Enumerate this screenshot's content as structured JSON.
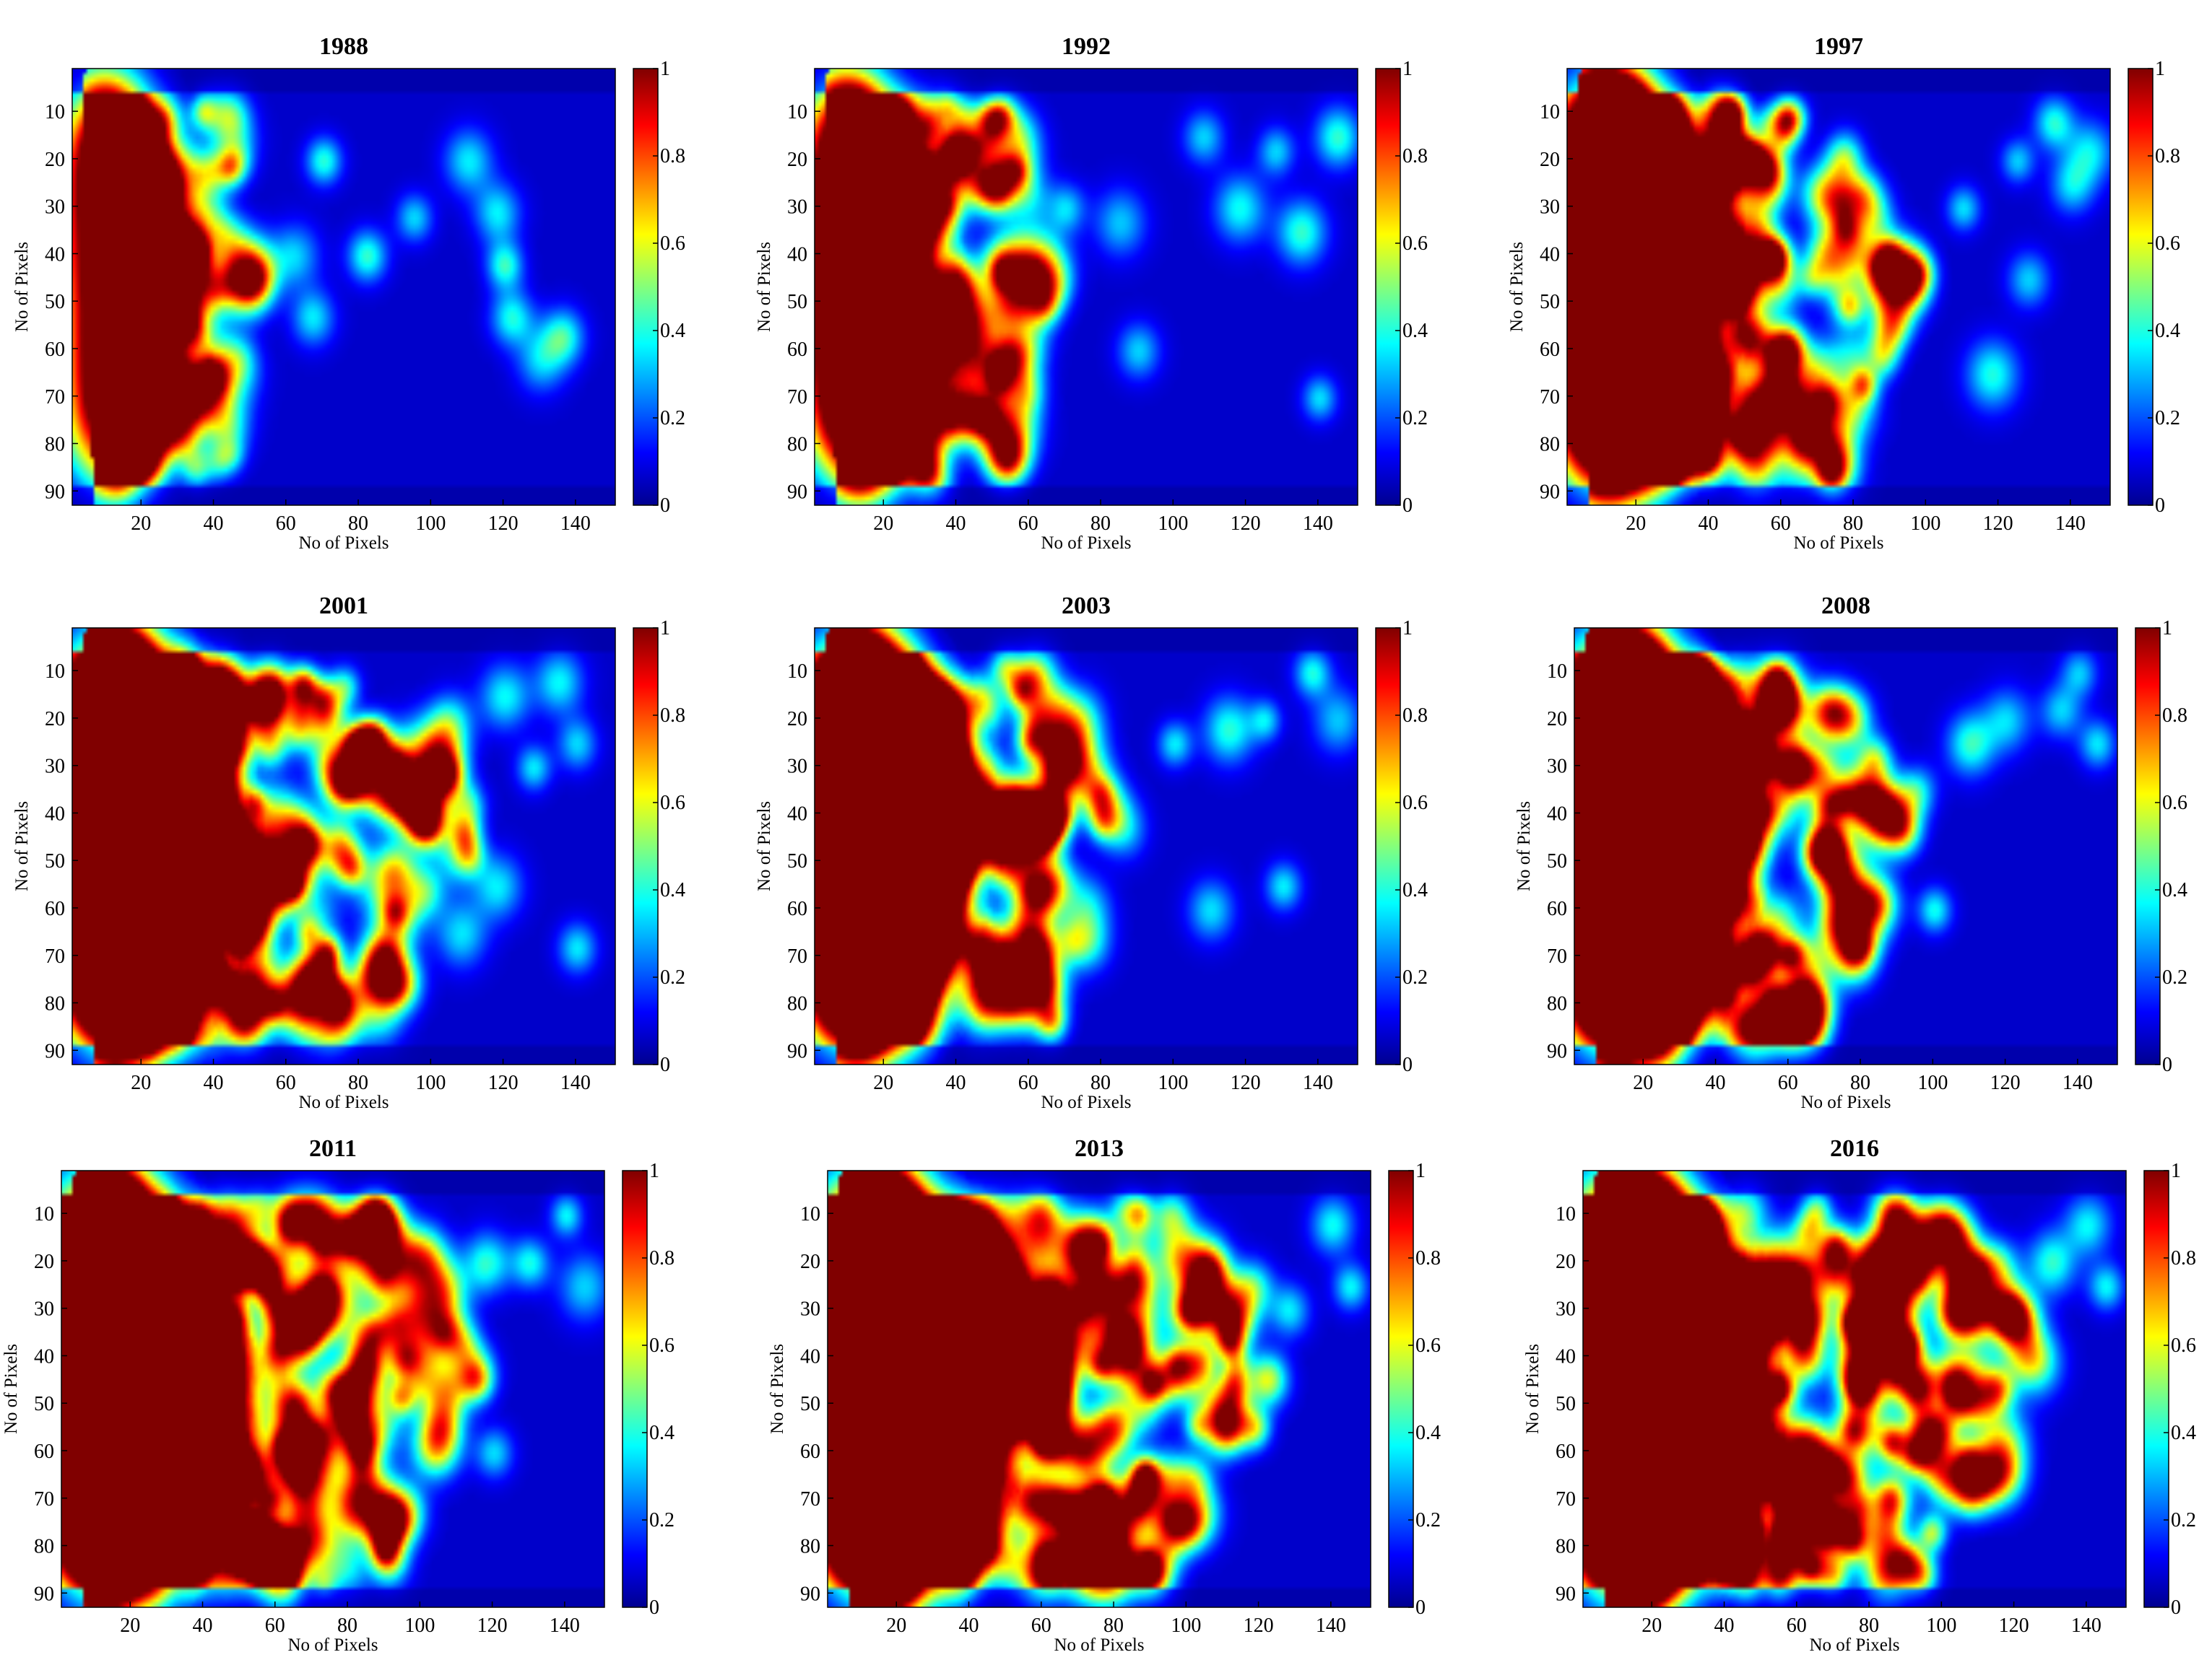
{
  "figure": {
    "colormap": "jet",
    "colormap_stops": [
      "#00008f",
      "#0000ff",
      "#00ffff",
      "#ffff00",
      "#ff0000",
      "#800000"
    ]
  },
  "chart_data": [
    {
      "type": "heatmap",
      "title": "1988",
      "xlabel": "No of Pixels",
      "ylabel": "No of Pixels",
      "xlim": [
        1,
        151
      ],
      "ylim": [
        93,
        1
      ],
      "x_ticks": [
        20,
        40,
        60,
        80,
        100,
        120,
        140
      ],
      "y_ticks": [
        10,
        20,
        30,
        40,
        50,
        60,
        70,
        80,
        90
      ],
      "colorbar": {
        "range": [
          0,
          1
        ],
        "ticks": [
          "0",
          "0.2",
          "0.4",
          "0.6",
          "0.8",
          "1"
        ]
      },
      "intensity": 0.35,
      "right_spread": 0.2,
      "peak": [
        10,
        20
      ],
      "hotspots": [
        [
          32,
          41
        ],
        [
          45,
          38
        ],
        [
          62,
          40
        ],
        [
          67,
          53
        ],
        [
          70,
          20
        ],
        [
          82,
          40
        ],
        [
          95,
          32
        ],
        [
          110,
          20
        ],
        [
          118,
          31
        ],
        [
          120,
          42
        ],
        [
          122,
          53
        ],
        [
          130,
          62
        ],
        [
          136,
          57
        ]
      ]
    },
    {
      "type": "heatmap",
      "title": "1992",
      "xlabel": "No of Pixels",
      "ylabel": "No of Pixels",
      "xlim": [
        1,
        151
      ],
      "ylim": [
        93,
        1
      ],
      "x_ticks": [
        20,
        40,
        60,
        80,
        100,
        120,
        140
      ],
      "y_ticks": [
        10,
        20,
        30,
        40,
        50,
        60,
        70,
        80,
        90
      ],
      "colorbar": {
        "range": [
          0,
          1
        ],
        "ticks": [
          "0",
          "0.2",
          "0.4",
          "0.6",
          "0.8",
          "1"
        ]
      },
      "intensity": 0.45,
      "right_spread": 0.35,
      "peak": [
        10,
        25
      ],
      "hotspots": [
        [
          55,
          40
        ],
        [
          62,
          50
        ],
        [
          70,
          30
        ],
        [
          85,
          33
        ],
        [
          90,
          60
        ],
        [
          108,
          15
        ],
        [
          118,
          30
        ],
        [
          128,
          18
        ],
        [
          135,
          35
        ],
        [
          145,
          15
        ],
        [
          140,
          70
        ]
      ]
    },
    {
      "type": "heatmap",
      "title": "1997",
      "xlabel": "No of Pixels",
      "ylabel": "No of Pixels",
      "xlim": [
        1,
        151
      ],
      "ylim": [
        93,
        1
      ],
      "x_ticks": [
        20,
        40,
        60,
        80,
        100,
        120,
        140
      ],
      "y_ticks": [
        10,
        20,
        30,
        40,
        50,
        60,
        70,
        80,
        90
      ],
      "colorbar": {
        "range": [
          0,
          1
        ],
        "ticks": [
          "0",
          "0.2",
          "0.4",
          "0.6",
          "0.8",
          "1"
        ]
      },
      "intensity": 0.75,
      "right_spread": 0.6,
      "peak": [
        14,
        35
      ],
      "hotspots": [
        [
          90,
          48
        ],
        [
          110,
          30
        ],
        [
          125,
          20
        ],
        [
          135,
          12
        ],
        [
          140,
          25
        ],
        [
          145,
          18
        ],
        [
          128,
          45
        ],
        [
          118,
          65
        ]
      ]
    },
    {
      "type": "heatmap",
      "title": "2001",
      "xlabel": "No of Pixels",
      "ylabel": "No of Pixels",
      "xlim": [
        1,
        151
      ],
      "ylim": [
        93,
        1
      ],
      "x_ticks": [
        20,
        40,
        60,
        80,
        100,
        120,
        140
      ],
      "y_ticks": [
        10,
        20,
        30,
        40,
        50,
        60,
        70,
        80,
        90
      ],
      "colorbar": {
        "range": [
          0,
          1
        ],
        "ticks": [
          "0",
          "0.2",
          "0.4",
          "0.6",
          "0.8",
          "1"
        ]
      },
      "intensity": 0.85,
      "right_spread": 0.75,
      "peak": [
        14,
        40
      ],
      "hotspots": [
        [
          105,
          20
        ],
        [
          120,
          15
        ],
        [
          135,
          12
        ],
        [
          140,
          25
        ],
        [
          128,
          30
        ],
        [
          118,
          55
        ],
        [
          108,
          65
        ],
        [
          140,
          68
        ]
      ]
    },
    {
      "type": "heatmap",
      "title": "2003",
      "xlabel": "No of Pixels",
      "ylabel": "No of Pixels",
      "xlim": [
        1,
        151
      ],
      "ylim": [
        93,
        1
      ],
      "x_ticks": [
        20,
        40,
        60,
        80,
        100,
        120,
        140
      ],
      "y_ticks": [
        10,
        20,
        30,
        40,
        50,
        60,
        70,
        80,
        90
      ],
      "colorbar": {
        "range": [
          0,
          1
        ],
        "ticks": [
          "0",
          "0.2",
          "0.4",
          "0.6",
          "0.8",
          "1"
        ]
      },
      "intensity": 0.8,
      "right_spread": 0.5,
      "peak": [
        15,
        30
      ],
      "hotspots": [
        [
          100,
          25
        ],
        [
          115,
          22
        ],
        [
          125,
          20
        ],
        [
          138,
          10
        ],
        [
          145,
          20
        ],
        [
          130,
          55
        ],
        [
          110,
          60
        ]
      ]
    },
    {
      "type": "heatmap",
      "title": "2008",
      "xlabel": "No of Pixels",
      "ylabel": "No of Pixels",
      "xlim": [
        1,
        151
      ],
      "ylim": [
        93,
        1
      ],
      "x_ticks": [
        20,
        40,
        60,
        80,
        100,
        120,
        140
      ],
      "y_ticks": [
        10,
        20,
        30,
        40,
        50,
        60,
        70,
        80,
        90
      ],
      "colorbar": {
        "range": [
          0,
          1
        ],
        "ticks": [
          "0",
          "0.2",
          "0.4",
          "0.6",
          "0.8",
          "1"
        ]
      },
      "intensity": 0.9,
      "right_spread": 0.55,
      "peak": [
        18,
        40
      ],
      "hotspots": [
        [
          95,
          35
        ],
        [
          110,
          25
        ],
        [
          120,
          20
        ],
        [
          135,
          18
        ],
        [
          140,
          10
        ],
        [
          145,
          25
        ],
        [
          100,
          60
        ]
      ]
    },
    {
      "type": "heatmap",
      "title": "2011",
      "xlabel": "No of Pixels",
      "ylabel": "No of Pixels",
      "xlim": [
        1,
        151
      ],
      "ylim": [
        93,
        1
      ],
      "x_ticks": [
        20,
        40,
        60,
        80,
        100,
        120,
        140
      ],
      "y_ticks": [
        10,
        20,
        30,
        40,
        50,
        60,
        70,
        80,
        90
      ],
      "colorbar": {
        "range": [
          0,
          1
        ],
        "ticks": [
          "0",
          "0.2",
          "0.4",
          "0.6",
          "0.8",
          "1"
        ]
      },
      "intensity": 0.95,
      "right_spread": 0.8,
      "peak": [
        22,
        45
      ],
      "hotspots": [
        [
          105,
          25
        ],
        [
          118,
          20
        ],
        [
          130,
          20
        ],
        [
          140,
          10
        ],
        [
          145,
          25
        ],
        [
          120,
          60
        ],
        [
          100,
          45
        ]
      ]
    },
    {
      "type": "heatmap",
      "title": "2013",
      "xlabel": "No of Pixels",
      "ylabel": "No of Pixels",
      "xlim": [
        1,
        151
      ],
      "ylim": [
        93,
        1
      ],
      "x_ticks": [
        20,
        40,
        60,
        80,
        100,
        120,
        140
      ],
      "y_ticks": [
        10,
        20,
        30,
        40,
        50,
        60,
        70,
        80,
        90
      ],
      "colorbar": {
        "range": [
          0,
          1
        ],
        "ticks": [
          "0",
          "0.2",
          "0.4",
          "0.6",
          "0.8",
          "1"
        ]
      },
      "intensity": 1.0,
      "right_spread": 0.85,
      "peak": [
        22,
        40
      ],
      "hotspots": [
        [
          105,
          20
        ],
        [
          118,
          25
        ],
        [
          128,
          30
        ],
        [
          140,
          12
        ],
        [
          145,
          25
        ],
        [
          110,
          55
        ],
        [
          95,
          65
        ]
      ]
    },
    {
      "type": "heatmap",
      "title": "2016",
      "xlabel": "No of Pixels",
      "ylabel": "No of Pixels",
      "xlim": [
        1,
        151
      ],
      "ylim": [
        93,
        1
      ],
      "x_ticks": [
        20,
        40,
        60,
        80,
        100,
        120,
        140
      ],
      "y_ticks": [
        10,
        20,
        30,
        40,
        50,
        60,
        70,
        80,
        90
      ],
      "colorbar": {
        "range": [
          0,
          1
        ],
        "ticks": [
          "0",
          "0.2",
          "0.4",
          "0.6",
          "0.8",
          "1"
        ]
      },
      "intensity": 1.0,
      "right_spread": 0.9,
      "peak": [
        25,
        45
      ],
      "hotspots": [
        [
          105,
          25
        ],
        [
          115,
          20
        ],
        [
          130,
          20
        ],
        [
          140,
          12
        ],
        [
          145,
          25
        ],
        [
          110,
          50
        ],
        [
          100,
          65
        ]
      ]
    }
  ]
}
